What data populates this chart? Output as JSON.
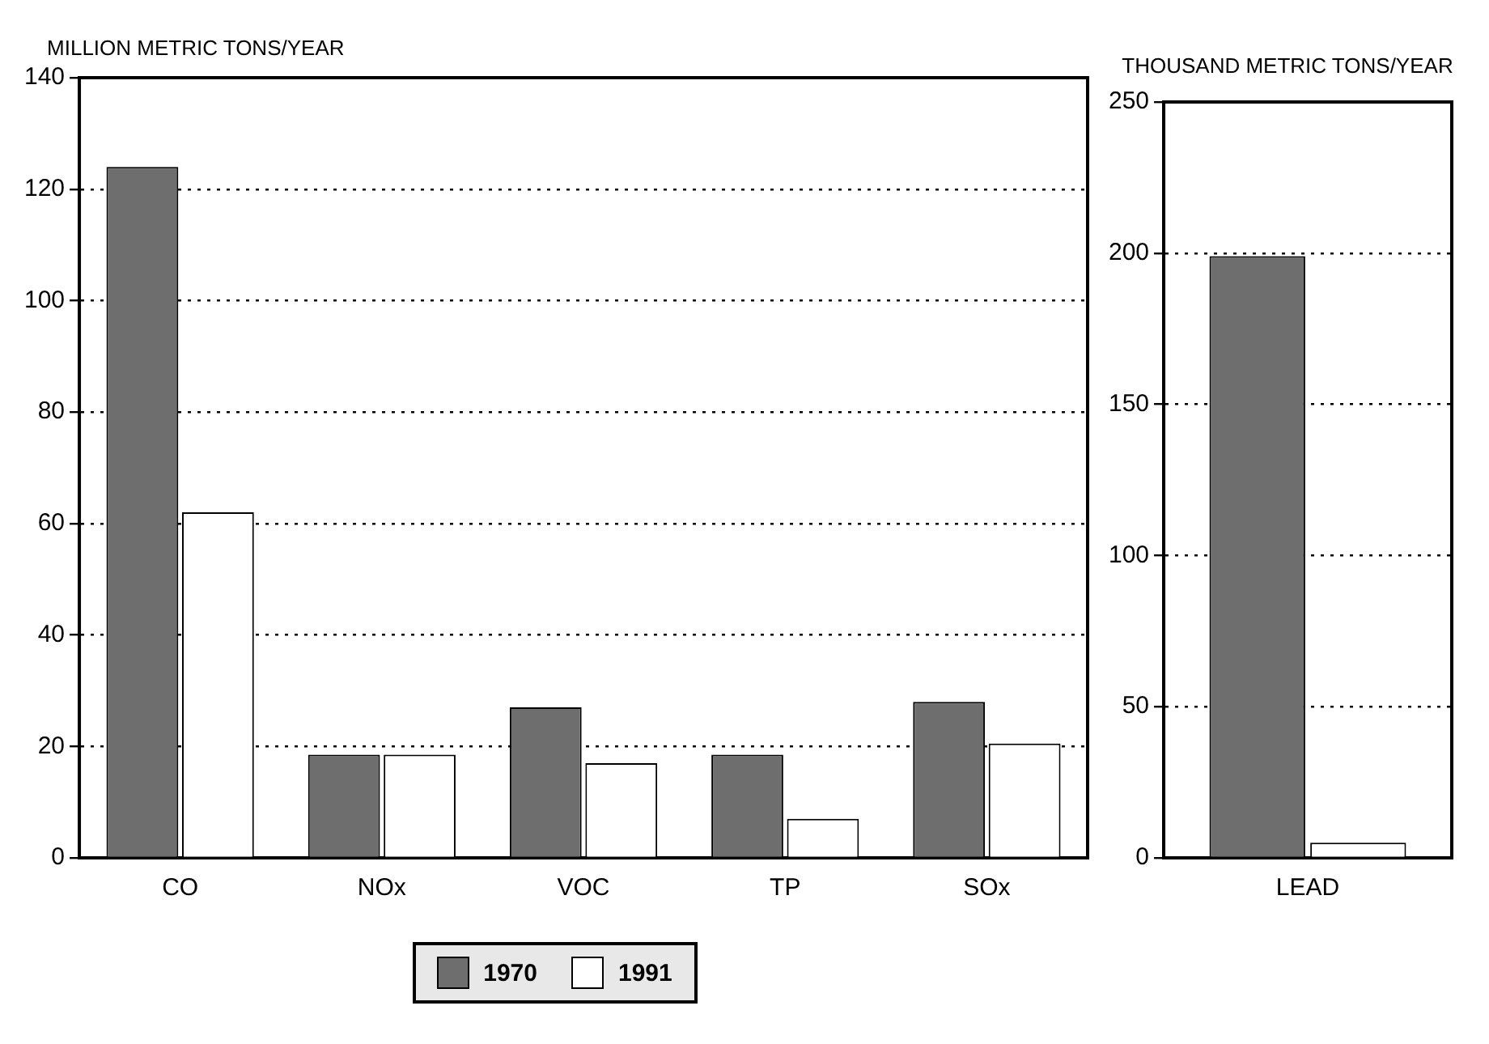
{
  "chart_data": [
    {
      "type": "bar",
      "ylabel": "MILLION METRIC TONS/YEAR",
      "categories": [
        "CO",
        "NOx",
        "VOC",
        "TP",
        "SOx"
      ],
      "ylim": [
        0,
        140
      ],
      "yticks": [
        0,
        20,
        40,
        60,
        80,
        100,
        120,
        140
      ],
      "grid": "y",
      "legend": "bottom",
      "series": [
        {
          "name": "1970",
          "color": "#6e6e6e",
          "values": [
            124,
            18.5,
            27,
            18.5,
            28
          ]
        },
        {
          "name": "1991",
          "color": "#ffffff",
          "values": [
            62,
            18.5,
            17,
            7,
            20.5
          ]
        }
      ]
    },
    {
      "type": "bar",
      "ylabel": "THOUSAND METRIC TONS/YEAR",
      "categories": [
        "LEAD"
      ],
      "ylim": [
        0,
        250
      ],
      "yticks": [
        0,
        50,
        100,
        150,
        200,
        250
      ],
      "grid": "y",
      "series": [
        {
          "color": "#6e6e6e",
          "values": [
            199
          ]
        },
        {
          "color": "#ffffff",
          "values": [
            5
          ]
        }
      ]
    }
  ]
}
